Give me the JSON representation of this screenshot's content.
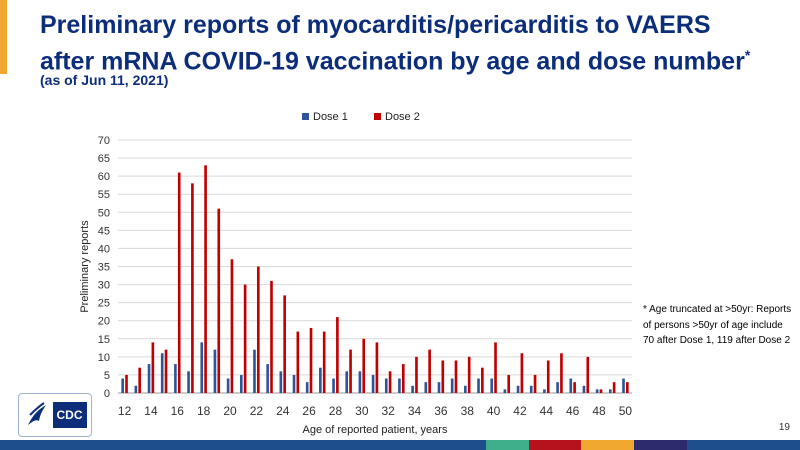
{
  "slide": {
    "title": "Preliminary reports of myocarditis/pericarditis to VAERS after mRNA COVID-19 vaccination by age and dose number",
    "title_marker": "*",
    "subtitle": "(as of Jun 11, 2021)",
    "footnote": "* Age truncated at >50yr: Reports of persons >50yr of age include 70 after Dose 1, 119 after Dose 2",
    "page_number": "19",
    "logo_text": "CDC",
    "colors": {
      "title": "#0b2d7a",
      "accent": "#f0a830",
      "stripe": [
        "#1f4e8c",
        "#3fae8b",
        "#b5121b",
        "#f0a830",
        "#2d2a6e",
        "#1f4e8c"
      ]
    }
  },
  "chart_data": {
    "type": "bar",
    "x": [
      12,
      13,
      14,
      15,
      16,
      17,
      18,
      19,
      20,
      21,
      22,
      23,
      24,
      25,
      26,
      27,
      28,
      29,
      30,
      31,
      32,
      33,
      34,
      35,
      36,
      37,
      38,
      39,
      40,
      41,
      42,
      43,
      44,
      45,
      46,
      47,
      48,
      49,
      50
    ],
    "x_tick_labels": [
      "12",
      "14",
      "16",
      "18",
      "20",
      "22",
      "24",
      "26",
      "28",
      "30",
      "32",
      "34",
      "36",
      "38",
      "40",
      "42",
      "44",
      "46",
      "48",
      "50"
    ],
    "series": [
      {
        "name": "Dose 1",
        "color": "#2f5597",
        "values": [
          4,
          2,
          8,
          11,
          8,
          6,
          14,
          12,
          4,
          5,
          12,
          8,
          6,
          5,
          3,
          7,
          4,
          6,
          6,
          5,
          4,
          4,
          2,
          3,
          3,
          4,
          2,
          4,
          4,
          1,
          2,
          2,
          1,
          3,
          4,
          2,
          1,
          1,
          4
        ]
      },
      {
        "name": "Dose 2",
        "color": "#c00000",
        "values": [
          5,
          7,
          14,
          12,
          61,
          58,
          63,
          51,
          37,
          30,
          35,
          31,
          27,
          17,
          18,
          17,
          21,
          12,
          15,
          14,
          6,
          8,
          10,
          12,
          9,
          9,
          10,
          7,
          14,
          5,
          11,
          5,
          9,
          11,
          3,
          10,
          1,
          3,
          3
        ]
      }
    ],
    "xlabel": "Age of reported patient, years",
    "ylabel": "Preliminary reports",
    "ylim": [
      0,
      70
    ],
    "yticks": [
      0,
      5,
      10,
      15,
      20,
      25,
      30,
      35,
      40,
      45,
      50,
      55,
      60,
      65,
      70
    ],
    "grid": true,
    "legend": "top-center"
  }
}
